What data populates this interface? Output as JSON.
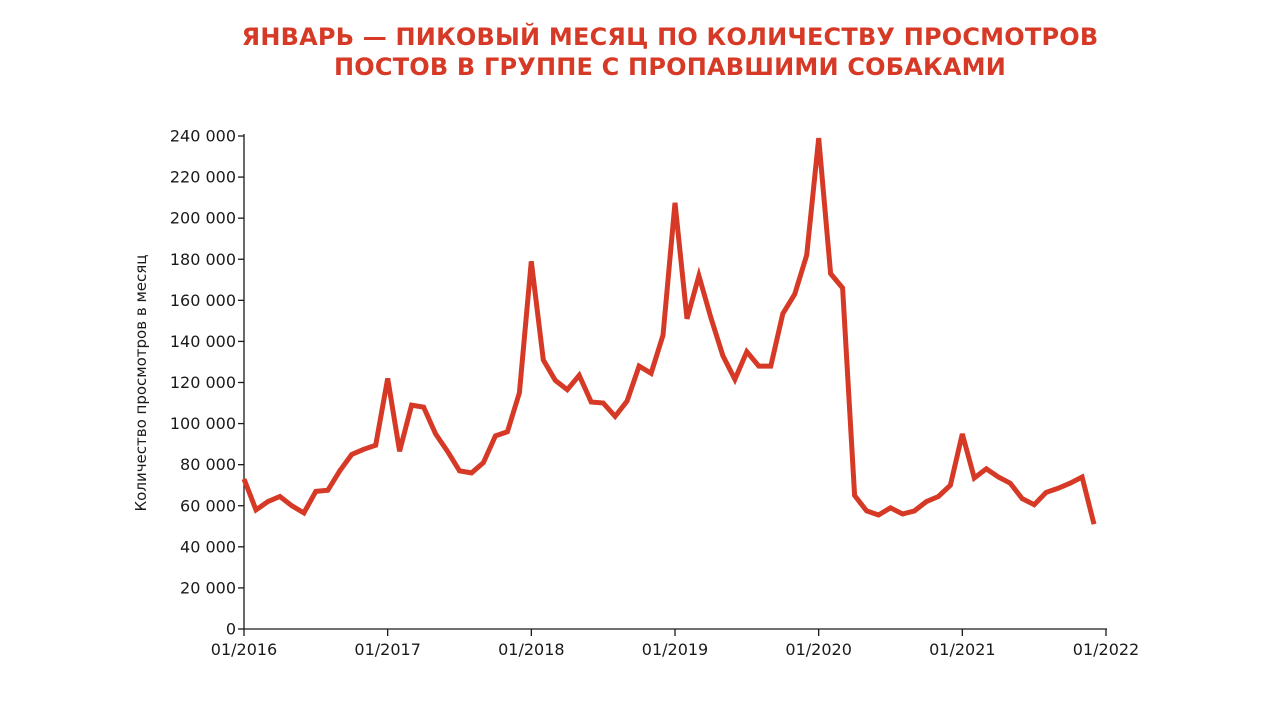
{
  "title_lines": [
    "ЯНВАРЬ — ПИКОВЫЙ МЕСЯЦ ПО КОЛИЧЕСТВУ ПРОСМОТРОВ",
    "ПОСТОВ В ГРУППЕ С ПРОПАВШИМИ СОБАКАМИ"
  ],
  "colors": {
    "title": "#d63a26",
    "line": "#d63a26",
    "axis": "#1a1a1a"
  },
  "chart_data": {
    "type": "line",
    "title": "ЯНВАРЬ — ПИКОВЫЙ МЕСЯЦ ПО КОЛИЧЕСТВУ ПРОСМОТРОВ ПОСТОВ В ГРУППЕ С ПРОПАВШИМИ СОБАКАМИ",
    "xlabel": "",
    "ylabel": "Количество просмотров в месяц",
    "x_range": [
      "01/2016",
      "01/2022"
    ],
    "x_ticks": [
      "01/2016",
      "01/2017",
      "01/2018",
      "01/2019",
      "01/2020",
      "01/2021",
      "01/2022"
    ],
    "ylim": [
      0,
      240000
    ],
    "y_ticks": [
      0,
      20000,
      40000,
      60000,
      80000,
      100000,
      120000,
      140000,
      160000,
      180000,
      200000,
      220000,
      240000
    ],
    "y_tick_labels": [
      "0",
      "20 000",
      "40 000",
      "60 000",
      "80 000",
      "100 000",
      "120 000",
      "140 000",
      "160 000",
      "180 000",
      "200 000",
      "220 000",
      "240 000"
    ],
    "grid": false,
    "series": [
      {
        "x": [
          "01/2016",
          "02/2016",
          "03/2016",
          "04/2016",
          "05/2016",
          "06/2016",
          "07/2016",
          "08/2016",
          "09/2016",
          "10/2016",
          "11/2016",
          "12/2016",
          "01/2017",
          "02/2017",
          "03/2017",
          "04/2017",
          "05/2017",
          "06/2017",
          "07/2017",
          "08/2017",
          "09/2017",
          "10/2017",
          "11/2017",
          "12/2017",
          "01/2018",
          "02/2018",
          "03/2018",
          "04/2018",
          "05/2018",
          "06/2018",
          "07/2018",
          "08/2018",
          "09/2018",
          "10/2018",
          "11/2018",
          "12/2018",
          "01/2019",
          "02/2019",
          "03/2019",
          "04/2019",
          "05/2019",
          "06/2019",
          "07/2019",
          "08/2019",
          "09/2019",
          "10/2019",
          "11/2019",
          "12/2019",
          "01/2020",
          "02/2020",
          "03/2020",
          "04/2020",
          "05/2020",
          "06/2020",
          "07/2020",
          "08/2020",
          "09/2020",
          "10/2020",
          "11/2020",
          "12/2020",
          "01/2021",
          "02/2021",
          "03/2021",
          "04/2021",
          "05/2021",
          "06/2021",
          "07/2021",
          "08/2021",
          "09/2021",
          "10/2021",
          "11/2021",
          "12/2021"
        ],
        "values": [
          73000,
          58000,
          62000,
          64500,
          60000,
          56500,
          67000,
          67500,
          77000,
          85000,
          87500,
          89500,
          122000,
          86500,
          109000,
          108000,
          95000,
          86500,
          77000,
          76000,
          81000,
          94000,
          96000,
          115000,
          179000,
          131000,
          121000,
          116500,
          123500,
          110500,
          110000,
          103500,
          111000,
          128000,
          124500,
          143000,
          207500,
          151000,
          172000,
          151500,
          133000,
          121500,
          135000,
          128000,
          128000,
          153500,
          163000,
          182000,
          239000,
          173000,
          166000,
          65000,
          57500,
          55500,
          59000,
          56000,
          57500,
          62000,
          64500,
          70000,
          95000,
          73500,
          78000,
          74000,
          71000,
          63500,
          60500,
          66500,
          68500,
          71000,
          74000,
          51000
        ]
      }
    ]
  }
}
